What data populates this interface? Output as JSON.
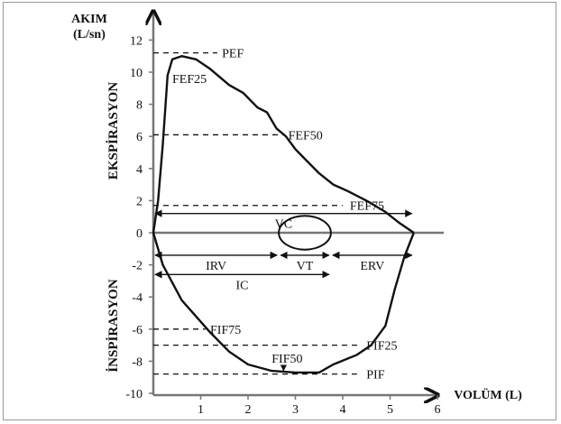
{
  "chart_data": {
    "type": "line",
    "title": "",
    "ylabel_lines": [
      "AKIM",
      "(L/sn)"
    ],
    "xlabel": "VOLÜM (L)",
    "expiration_label": "EKSPİRASYON",
    "inspiration_label": "İNSPİRASYON",
    "xlim": [
      0,
      6
    ],
    "ylim": [
      -10,
      12.5
    ],
    "x_ticks": [
      1,
      2,
      3,
      4,
      5,
      6
    ],
    "y_ticks": [
      -10,
      -8,
      -6,
      -4,
      -2,
      0,
      2,
      4,
      6,
      8,
      10,
      12
    ],
    "flow_volume_loop": {
      "expiratory": [
        [
          0.0,
          0.0
        ],
        [
          0.1,
          2.0
        ],
        [
          0.2,
          5.5
        ],
        [
          0.3,
          9.8
        ],
        [
          0.4,
          10.8
        ],
        [
          0.6,
          11.0
        ],
        [
          0.9,
          10.8
        ],
        [
          1.2,
          10.2
        ],
        [
          1.6,
          9.2
        ],
        [
          1.9,
          8.7
        ],
        [
          2.2,
          7.8
        ],
        [
          2.4,
          7.5
        ],
        [
          2.6,
          6.5
        ],
        [
          2.8,
          6.0
        ],
        [
          3.0,
          5.2
        ],
        [
          3.2,
          4.6
        ],
        [
          3.5,
          3.7
        ],
        [
          3.8,
          3.0
        ],
        [
          4.1,
          2.6
        ],
        [
          4.5,
          2.0
        ],
        [
          4.9,
          1.3
        ],
        [
          5.2,
          0.6
        ],
        [
          5.5,
          0.0
        ]
      ],
      "inspiratory": [
        [
          0.0,
          0.0
        ],
        [
          0.2,
          -2.0
        ],
        [
          0.6,
          -4.2
        ],
        [
          1.2,
          -6.2
        ],
        [
          1.6,
          -7.4
        ],
        [
          2.0,
          -8.2
        ],
        [
          2.5,
          -8.6
        ],
        [
          3.0,
          -8.7
        ],
        [
          3.5,
          -8.7
        ],
        [
          3.8,
          -8.2
        ],
        [
          4.3,
          -7.6
        ],
        [
          4.6,
          -7.0
        ],
        [
          4.9,
          -5.8
        ],
        [
          5.1,
          -3.5
        ],
        [
          5.3,
          -1.5
        ],
        [
          5.5,
          0.0
        ]
      ]
    },
    "tidal_loop": {
      "center": [
        3.2,
        0.0
      ],
      "rx": 0.55,
      "ry": 1.05
    },
    "reference_lines": [
      {
        "label": "PEF",
        "y": 11.2,
        "x_end": 1.35,
        "label_x": 1.45
      },
      {
        "label": "FEF50",
        "y": 6.1,
        "x_end": 2.75,
        "label_x": 2.85
      },
      {
        "label": "FEF75",
        "y": 1.7,
        "x_end": 4.0,
        "label_x": 4.15
      },
      {
        "label": "FIF75",
        "y": -6.0,
        "x_end": 1.1,
        "label_x": 1.2
      },
      {
        "label": "FIF25",
        "y": -7.0,
        "x_end": 4.4,
        "label_x": 4.5
      },
      {
        "label": "PIF",
        "y": -8.8,
        "x_end": 4.3,
        "label_x": 4.5
      }
    ],
    "point_labels": [
      {
        "label": "FEF25",
        "x": 0.4,
        "y": 9.6
      },
      {
        "label": "FIF50",
        "x": 2.5,
        "y": -7.8
      }
    ],
    "volume_arrows": [
      {
        "label": "VC",
        "x_start": 0.0,
        "x_end": 5.5,
        "y": 1.2
      },
      {
        "label": "IRV",
        "x_start": 0.0,
        "x_end": 2.65,
        "y": -1.4
      },
      {
        "label": "VT",
        "x_start": 2.65,
        "x_end": 3.75,
        "y": -1.4
      },
      {
        "label": "ERV",
        "x_start": 3.75,
        "x_end": 5.5,
        "y": -1.4
      },
      {
        "label": "IC",
        "x_start": 0.0,
        "x_end": 3.75,
        "y": -2.6
      }
    ]
  }
}
